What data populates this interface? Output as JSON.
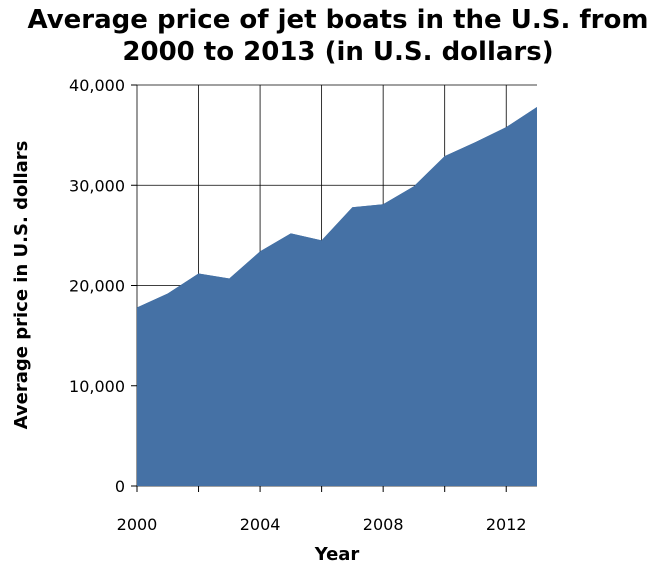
{
  "chart_data": {
    "type": "area",
    "title": [
      "Average price of jet boats in the U.S. from",
      "2000 to 2013 (in U.S. dollars)"
    ],
    "xlabel": "Year",
    "ylabel": "Average price in U.S. dollars",
    "x": [
      2000,
      2001,
      2002,
      2003,
      2004,
      2005,
      2006,
      2007,
      2008,
      2009,
      2010,
      2011,
      2012,
      2013
    ],
    "series": [
      {
        "values": [
          17800,
          19200,
          21200,
          20700,
          23400,
          25200,
          24500,
          27800,
          28100,
          29900,
          32900,
          34300,
          35800,
          37800
        ],
        "color": "#4571a5"
      }
    ],
    "xlim": [
      2000,
      2013
    ],
    "ylim": [
      0,
      40000
    ],
    "x_ticks": [
      2000,
      2004,
      2008,
      2012
    ],
    "x_tick_labels": [
      "2000",
      "2004",
      "2008",
      "2012"
    ],
    "y_ticks": [
      0,
      10000,
      20000,
      30000,
      40000
    ],
    "y_tick_labels": [
      "0",
      "10,000",
      "20,000",
      "30,000",
      "40,000"
    ],
    "grid_x": [
      2000,
      2002,
      2004,
      2006,
      2008,
      2010,
      2012
    ],
    "grid": true,
    "grid_color": "#000000",
    "legend": "none"
  }
}
